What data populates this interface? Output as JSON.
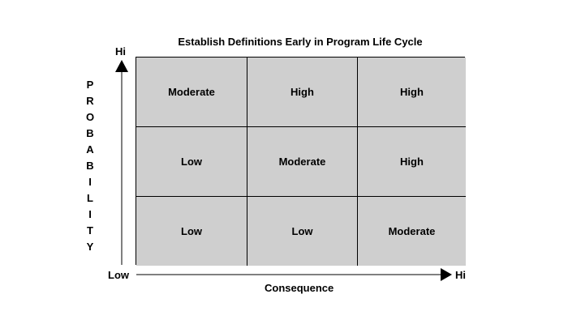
{
  "title": "Establish Definitions Early in Program Life Cycle",
  "y_axis": {
    "label_letters": [
      "P",
      "R",
      "O",
      "B",
      "A",
      "B",
      "I",
      "L",
      "I",
      "T",
      "Y"
    ],
    "high_label": "Hi",
    "low_label": "Low"
  },
  "x_axis": {
    "label": "Consequence",
    "high_label": "Hi"
  },
  "matrix": {
    "rows": [
      [
        "Moderate",
        "High",
        "High"
      ],
      [
        "Low",
        "Moderate",
        "High"
      ],
      [
        "Low",
        "Low",
        "Moderate"
      ]
    ]
  },
  "colors": {
    "cell_fill": "#cfcfcf",
    "line": "#000000"
  }
}
